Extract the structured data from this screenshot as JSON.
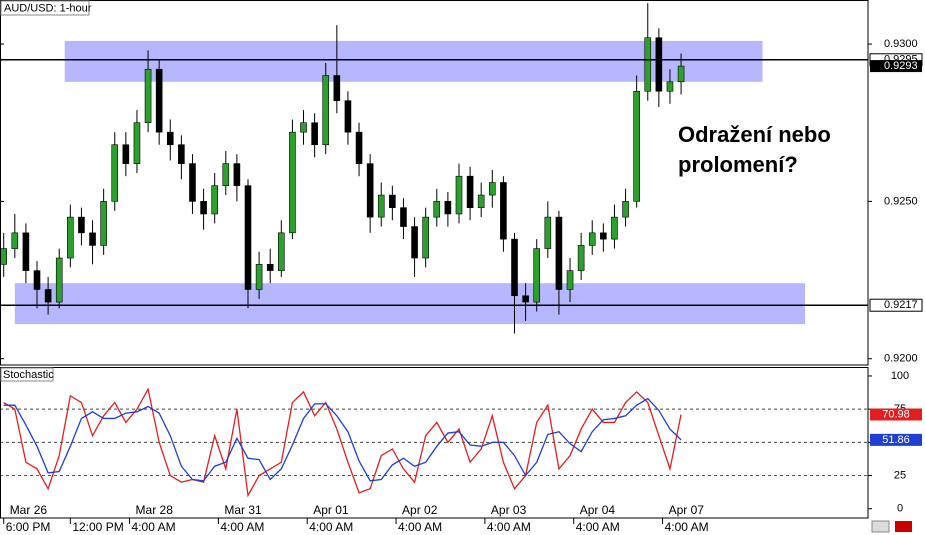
{
  "chart_data": [
    {
      "type": "candlestick",
      "title": "AUD/USD: 1-hour",
      "annotation": [
        "Odražení nebo",
        "prolomení?"
      ],
      "x": [
        0,
        3,
        6,
        9,
        12,
        15,
        18,
        21,
        24,
        27,
        30,
        33,
        36,
        39,
        42,
        45,
        48,
        51,
        54,
        57,
        60,
        63,
        66,
        69,
        72,
        75,
        78,
        81,
        84,
        87,
        90,
        93,
        96,
        99,
        102,
        105,
        108,
        111,
        114,
        117,
        120,
        123,
        126,
        129,
        132,
        135,
        138,
        141,
        144,
        147,
        150,
        153,
        156,
        159,
        162,
        165,
        168,
        171,
        174,
        177,
        180,
        183
      ],
      "open": [
        0.923,
        0.9235,
        0.924,
        0.9228,
        0.9222,
        0.9218,
        0.9232,
        0.9245,
        0.924,
        0.9236,
        0.925,
        0.9268,
        0.9262,
        0.9275,
        0.9292,
        0.9272,
        0.9268,
        0.9262,
        0.925,
        0.9246,
        0.9255,
        0.9262,
        0.9255,
        0.9222,
        0.923,
        0.9228,
        0.924,
        0.9272,
        0.9275,
        0.9268,
        0.929,
        0.9282,
        0.9272,
        0.9262,
        0.9245,
        0.9252,
        0.9248,
        0.9242,
        0.9232,
        0.9245,
        0.925,
        0.9246,
        0.9258,
        0.9248,
        0.9252,
        0.9256,
        0.9238,
        0.922,
        0.9218,
        0.9235,
        0.9245,
        0.9222,
        0.9228,
        0.9236,
        0.924,
        0.9238,
        0.9245,
        0.925,
        0.9285,
        0.9302,
        0.9285,
        0.9288
      ],
      "high": [
        0.924,
        0.9246,
        0.9243,
        0.9231,
        0.9226,
        0.9235,
        0.9249,
        0.9248,
        0.9244,
        0.9254,
        0.9272,
        0.9272,
        0.9279,
        0.9298,
        0.9295,
        0.9276,
        0.9271,
        0.9265,
        0.9254,
        0.9259,
        0.9266,
        0.9265,
        0.9257,
        0.9234,
        0.9235,
        0.9244,
        0.9276,
        0.9279,
        0.9278,
        0.9294,
        0.9306,
        0.9285,
        0.9275,
        0.9265,
        0.9256,
        0.9255,
        0.9251,
        0.9245,
        0.9248,
        0.9254,
        0.9253,
        0.9262,
        0.9261,
        0.9256,
        0.926,
        0.9258,
        0.924,
        0.9224,
        0.9238,
        0.925,
        0.9247,
        0.9232,
        0.924,
        0.9244,
        0.9243,
        0.9249,
        0.9254,
        0.929,
        0.9313,
        0.9305,
        0.9292,
        0.9297
      ],
      "low": [
        0.9226,
        0.9232,
        0.9224,
        0.9216,
        0.9214,
        0.9216,
        0.9229,
        0.9236,
        0.923,
        0.9233,
        0.9247,
        0.9258,
        0.9259,
        0.9272,
        0.9268,
        0.9263,
        0.9257,
        0.9246,
        0.9241,
        0.9243,
        0.9252,
        0.925,
        0.9216,
        0.9219,
        0.9224,
        0.9226,
        0.9238,
        0.9268,
        0.9264,
        0.9265,
        0.9278,
        0.9268,
        0.9258,
        0.924,
        0.9242,
        0.9244,
        0.9238,
        0.9226,
        0.9229,
        0.9242,
        0.9242,
        0.9243,
        0.9244,
        0.9245,
        0.9248,
        0.9234,
        0.9208,
        0.9212,
        0.9215,
        0.9232,
        0.9214,
        0.9218,
        0.9225,
        0.9233,
        0.9234,
        0.9235,
        0.9242,
        0.9248,
        0.9282,
        0.928,
        0.9281,
        0.9284
      ],
      "close": [
        0.9235,
        0.924,
        0.9228,
        0.9222,
        0.9218,
        0.9232,
        0.9245,
        0.924,
        0.9236,
        0.925,
        0.9268,
        0.9262,
        0.9275,
        0.9292,
        0.9272,
        0.9268,
        0.9262,
        0.925,
        0.9246,
        0.9255,
        0.9262,
        0.9255,
        0.9222,
        0.923,
        0.9228,
        0.924,
        0.9272,
        0.9275,
        0.9268,
        0.929,
        0.9282,
        0.9272,
        0.9262,
        0.9245,
        0.9252,
        0.9248,
        0.9242,
        0.9232,
        0.9245,
        0.925,
        0.9246,
        0.9258,
        0.9248,
        0.9252,
        0.9256,
        0.9238,
        0.922,
        0.9218,
        0.9235,
        0.9245,
        0.9222,
        0.9228,
        0.9236,
        0.924,
        0.9238,
        0.9245,
        0.925,
        0.9285,
        0.9302,
        0.9285,
        0.9288,
        0.9293
      ],
      "up_color": "#2ca02c",
      "down_color": "#000000",
      "xlim": [
        -1,
        233.5
      ],
      "ylim": [
        0.9198,
        0.9314
      ],
      "yticks": [
        {
          "value": 0.93,
          "label": "0.9300"
        },
        {
          "value": 0.925,
          "label": "0.9250"
        },
        {
          "value": 0.92,
          "label": "0.9200"
        }
      ],
      "hlines": [
        0.9295,
        0.9217
      ],
      "zones": [
        {
          "x0": 16.5,
          "x1": 205,
          "y0": 0.9288,
          "y1": 0.9301
        },
        {
          "x0": 3,
          "x1": 216.5,
          "y0": 0.9211,
          "y1": 0.9224
        }
      ],
      "zone_color": "#9999ff",
      "x_labels": [
        {
          "x": 0,
          "date": "Mar 26",
          "time": "6:00 PM"
        },
        {
          "x": 18,
          "date": null,
          "time": "12:00 PM"
        },
        {
          "x": 34,
          "date": "Mar 28",
          "time": "4:00 AM"
        },
        {
          "x": 58,
          "date": "Mar 31",
          "time": "4:00 AM"
        },
        {
          "x": 82,
          "date": "Apr 01",
          "time": "4:00 AM"
        },
        {
          "x": 106,
          "date": "Apr 02",
          "time": "4:00 AM"
        },
        {
          "x": 130,
          "date": "Apr 03",
          "time": "4:00 AM"
        },
        {
          "x": 154,
          "date": "Apr 04",
          "time": "4:00 AM"
        },
        {
          "x": 178,
          "date": "Apr 07",
          "time": "4:00 AM"
        }
      ]
    },
    {
      "type": "line",
      "title": "Stochastic",
      "series": [
        {
          "color": "#e02020",
          "values": [
            80,
            75,
            35,
            30,
            15,
            40,
            85,
            80,
            55,
            70,
            80,
            65,
            75,
            90,
            50,
            25,
            20,
            22,
            20,
            55,
            30,
            75,
            10,
            25,
            30,
            35,
            80,
            88,
            70,
            80,
            60,
            35,
            12,
            15,
            40,
            45,
            30,
            20,
            55,
            65,
            50,
            60,
            35,
            45,
            70,
            35,
            15,
            25,
            65,
            78,
            30,
            40,
            60,
            75,
            65,
            65,
            80,
            88,
            80,
            55,
            30,
            70.98
          ]
        },
        {
          "color": "#1f3fd0",
          "values": [
            78,
            78,
            63,
            47,
            27,
            28,
            47,
            68,
            73,
            68,
            68,
            72,
            73,
            77,
            72,
            55,
            32,
            22,
            21,
            32,
            35,
            53,
            38,
            37,
            22,
            30,
            48,
            68,
            79,
            79,
            70,
            58,
            36,
            21,
            22,
            33,
            38,
            32,
            35,
            47,
            57,
            58,
            48,
            47,
            50,
            50,
            40,
            25,
            35,
            56,
            58,
            49,
            43,
            58,
            67,
            68,
            70,
            78,
            83,
            74,
            60,
            51.86
          ]
        }
      ],
      "ylim": [
        -7,
        106
      ],
      "yticks": [
        100,
        75,
        50,
        25,
        0
      ],
      "levels": [
        75,
        50,
        25
      ],
      "level_colors": [
        "#444444",
        "#444444",
        "#d02020"
      ]
    }
  ]
}
